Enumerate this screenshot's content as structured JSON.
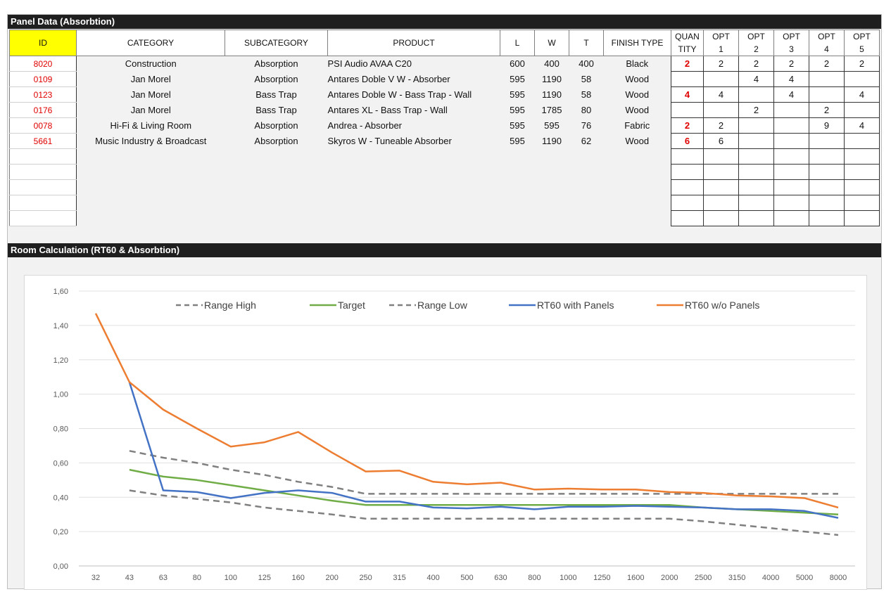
{
  "panel_section": {
    "title": "Panel Data (Absorbtion)"
  },
  "room_section": {
    "title": "Room Calculation (RT60 & Absorbtion)"
  },
  "table": {
    "headers": {
      "id": "ID",
      "category": "CATEGORY",
      "subcategory": "SUBCATEGORY",
      "product": "PRODUCT",
      "l": "L",
      "w": "W",
      "t": "T",
      "finish": "FINISH TYPE",
      "quantity_1": "QUAN",
      "quantity_2": "TITY",
      "opt_label": "OPT",
      "opt_numbers": [
        "1",
        "2",
        "3",
        "4",
        "5"
      ]
    },
    "rows": [
      {
        "id": "8020",
        "category": "Construction",
        "subcategory": "Absorption",
        "product": "PSI Audio AVAA C20",
        "l": "600",
        "w": "400",
        "t": "400",
        "finish": "Black",
        "quantity": "2",
        "opts": [
          "2",
          "2",
          "2",
          "2",
          "2"
        ]
      },
      {
        "id": "0109",
        "category": "Jan Morel",
        "subcategory": "Absorption",
        "product": "Antares Doble V W - Absorber",
        "l": "595",
        "w": "1190",
        "t": "58",
        "finish": "Wood",
        "quantity": "",
        "opts": [
          "",
          "4",
          "4",
          "",
          ""
        ]
      },
      {
        "id": "0123",
        "category": "Jan Morel",
        "subcategory": "Bass Trap",
        "product": "Antares Doble W - Bass Trap - Wall",
        "l": "595",
        "w": "1190",
        "t": "58",
        "finish": "Wood",
        "quantity": "4",
        "opts": [
          "4",
          "",
          "4",
          "",
          "4"
        ]
      },
      {
        "id": "0176",
        "category": "Jan Morel",
        "subcategory": "Bass Trap",
        "product": "Antares XL - Bass Trap - Wall",
        "l": "595",
        "w": "1785",
        "t": "80",
        "finish": "Wood",
        "quantity": "",
        "opts": [
          "",
          "2",
          "",
          "2",
          ""
        ]
      },
      {
        "id": "0078",
        "category": "Hi-Fi & Living Room",
        "subcategory": "Absorption",
        "product": "Andrea - Absorber",
        "l": "595",
        "w": "595",
        "t": "76",
        "finish": "Fabric",
        "quantity": "2",
        "opts": [
          "2",
          "",
          "",
          "9",
          "4"
        ]
      },
      {
        "id": "5661",
        "category": "Music Industry & Broadcast",
        "subcategory": "Absorption",
        "product": "Skyros W - Tuneable Absorber",
        "l": "595",
        "w": "1190",
        "t": "62",
        "finish": "Wood",
        "quantity": "6",
        "opts": [
          "6",
          "",
          "",
          "",
          ""
        ]
      },
      {
        "id": "",
        "category": "",
        "subcategory": "",
        "product": "",
        "l": "",
        "w": "",
        "t": "",
        "finish": "",
        "quantity": "",
        "opts": [
          "",
          "",
          "",
          "",
          ""
        ]
      },
      {
        "id": "",
        "category": "",
        "subcategory": "",
        "product": "",
        "l": "",
        "w": "",
        "t": "",
        "finish": "",
        "quantity": "",
        "opts": [
          "",
          "",
          "",
          "",
          ""
        ]
      },
      {
        "id": "",
        "category": "",
        "subcategory": "",
        "product": "",
        "l": "",
        "w": "",
        "t": "",
        "finish": "",
        "quantity": "",
        "opts": [
          "",
          "",
          "",
          "",
          ""
        ]
      },
      {
        "id": "",
        "category": "",
        "subcategory": "",
        "product": "",
        "l": "",
        "w": "",
        "t": "",
        "finish": "",
        "quantity": "",
        "opts": [
          "",
          "",
          "",
          "",
          ""
        ]
      },
      {
        "id": "",
        "category": "",
        "subcategory": "",
        "product": "",
        "l": "",
        "w": "",
        "t": "",
        "finish": "",
        "quantity": "",
        "opts": [
          "",
          "",
          "",
          "",
          ""
        ]
      }
    ]
  },
  "chart_data": {
    "type": "line",
    "x": [
      "32",
      "43",
      "63",
      "80",
      "100",
      "125",
      "160",
      "200",
      "250",
      "315",
      "400",
      "500",
      "630",
      "800",
      "1000",
      "1250",
      "1600",
      "2000",
      "2500",
      "3150",
      "4000",
      "5000",
      "8000"
    ],
    "ylim": [
      0,
      1.6
    ],
    "yticks": [
      "0,00",
      "0,20",
      "0,40",
      "0,60",
      "0,80",
      "1,00",
      "1,20",
      "1,40",
      "1,60"
    ],
    "grid": "horizontal",
    "legend_position": "top",
    "series": [
      {
        "name": "Range High",
        "color": "#808080",
        "dash": true,
        "start_index": 1,
        "values": [
          null,
          0.67,
          0.63,
          0.6,
          0.56,
          0.53,
          0.49,
          0.46,
          0.42,
          0.42,
          0.42,
          0.42,
          0.42,
          0.42,
          0.42,
          0.42,
          0.42,
          0.42,
          0.42,
          0.42,
          0.42,
          0.42,
          0.42
        ]
      },
      {
        "name": "Target",
        "color": "#70ad47",
        "dash": false,
        "values": [
          null,
          0.56,
          0.52,
          0.5,
          0.47,
          0.44,
          0.41,
          0.38,
          0.355,
          0.355,
          0.355,
          0.355,
          0.355,
          0.355,
          0.355,
          0.355,
          0.355,
          0.355,
          0.34,
          0.33,
          0.32,
          0.31,
          0.3
        ]
      },
      {
        "name": "Range Low",
        "color": "#808080",
        "dash": true,
        "values": [
          null,
          0.44,
          0.41,
          0.39,
          0.37,
          0.34,
          0.32,
          0.3,
          0.275,
          0.275,
          0.275,
          0.275,
          0.275,
          0.275,
          0.275,
          0.275,
          0.275,
          0.275,
          0.26,
          0.24,
          0.22,
          0.2,
          0.18
        ]
      },
      {
        "name": "RT60 with Panels",
        "color": "#4472c4",
        "dash": false,
        "values": [
          null,
          1.07,
          0.44,
          0.43,
          0.395,
          0.425,
          0.44,
          0.425,
          0.375,
          0.375,
          0.34,
          0.335,
          0.345,
          0.33,
          0.345,
          0.345,
          0.35,
          0.345,
          0.34,
          0.33,
          0.33,
          0.32,
          0.28
        ]
      },
      {
        "name": "RT60 w/o Panels",
        "color": "#ed7d31",
        "dash": false,
        "values": [
          1.47,
          1.07,
          0.91,
          0.8,
          0.695,
          0.72,
          0.78,
          0.66,
          0.55,
          0.555,
          0.49,
          0.475,
          0.485,
          0.445,
          0.45,
          0.445,
          0.445,
          0.43,
          0.425,
          0.41,
          0.405,
          0.395,
          0.34
        ]
      }
    ]
  }
}
